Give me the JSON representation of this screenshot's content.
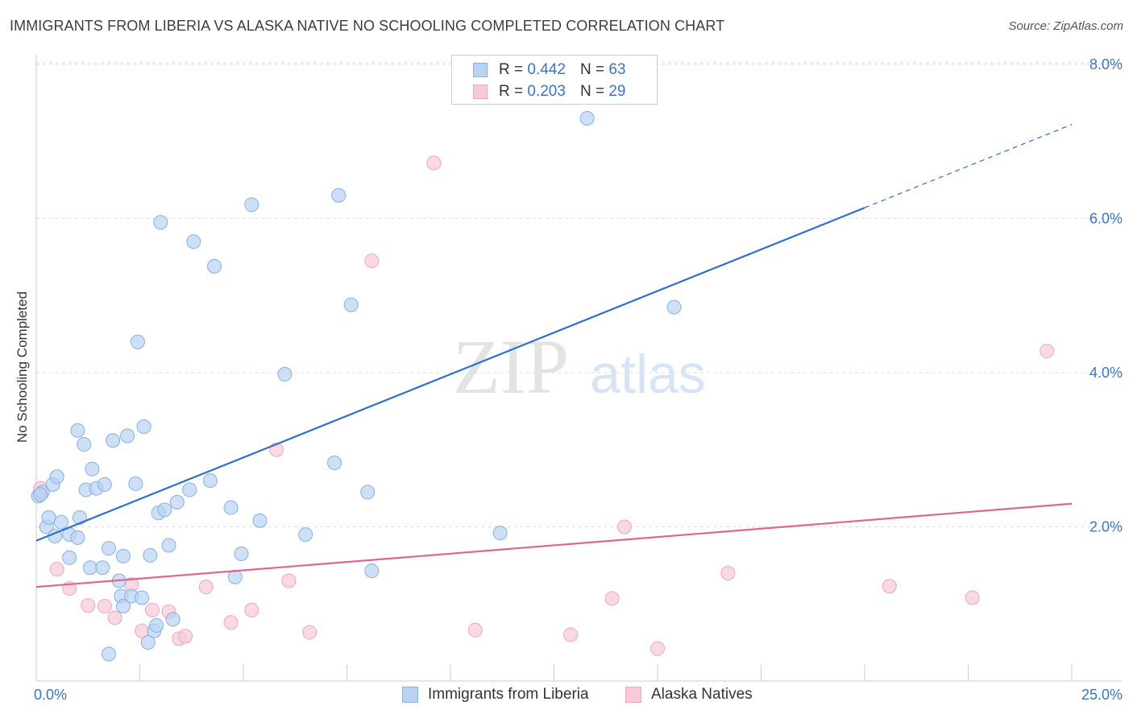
{
  "header": {
    "title": "IMMIGRANTS FROM LIBERIA VS ALASKA NATIVE NO SCHOOLING COMPLETED CORRELATION CHART",
    "source": "Source: ZipAtlas.com"
  },
  "watermark": {
    "zip": "ZIP",
    "atlas": "atlas"
  },
  "legend_top": [
    {
      "r_label": "R =",
      "r_value": "0.442",
      "n_label": "N =",
      "n_value": "63"
    },
    {
      "r_label": "R =",
      "r_value": "0.203",
      "n_label": "N =",
      "n_value": "29"
    }
  ],
  "legend_bottom": [
    {
      "label": "Immigrants from Liberia"
    },
    {
      "label": "Alaska Natives"
    }
  ],
  "colors": {
    "blue_fill": "#b9d3f2",
    "blue_stroke": "#86b0e3",
    "blue_line": "#2f6fcf",
    "pink_fill": "#f9c9d7",
    "pink_stroke": "#eea6bc",
    "pink_line": "#e0668e",
    "tick_text": "#3a74c9",
    "grid": "#dddddd"
  },
  "chart_data": {
    "type": "scatter",
    "title": "IMMIGRANTS FROM LIBERIA VS ALASKA NATIVE NO SCHOOLING COMPLETED CORRELATION CHART",
    "xlabel": "",
    "ylabel": "No Schooling Completed",
    "xlim": [
      0,
      25
    ],
    "ylim": [
      0,
      8.2
    ],
    "x_tick_labels": [
      "0.0%",
      "25.0%"
    ],
    "x_tick_label_values": [
      0,
      25
    ],
    "x_minor_ticks": [
      0,
      2.5,
      5,
      7.5,
      10,
      12.5,
      15,
      17.5,
      20,
      22.5,
      25
    ],
    "y_ticks": [
      2,
      4,
      6,
      8
    ],
    "y_tick_labels": [
      "2.0%",
      "4.0%",
      "6.0%",
      "8.0%"
    ],
    "grid": true,
    "legend_placement": "top-center and bottom",
    "series": [
      {
        "name": "Immigrants from Liberia",
        "color": "#b9d3f2",
        "r": 0.442,
        "n": 63,
        "trend": {
          "x": [
            0,
            20
          ],
          "y": [
            1.82,
            6.14
          ],
          "dashed_to": [
            25,
            7.22
          ]
        },
        "points": [
          [
            0.05,
            2.4
          ],
          [
            0.15,
            2.45
          ],
          [
            0.25,
            2.0
          ],
          [
            0.3,
            2.12
          ],
          [
            0.4,
            2.55
          ],
          [
            0.45,
            1.88
          ],
          [
            0.5,
            2.65
          ],
          [
            0.6,
            2.06
          ],
          [
            0.8,
            1.9
          ],
          [
            0.8,
            1.6
          ],
          [
            1.0,
            3.25
          ],
          [
            1.0,
            1.86
          ],
          [
            1.05,
            2.12
          ],
          [
            1.15,
            3.07
          ],
          [
            1.2,
            2.48
          ],
          [
            1.3,
            1.47
          ],
          [
            1.35,
            2.75
          ],
          [
            1.45,
            2.5
          ],
          [
            1.6,
            1.47
          ],
          [
            1.65,
            2.55
          ],
          [
            1.75,
            0.35
          ],
          [
            1.75,
            1.72
          ],
          [
            1.85,
            3.12
          ],
          [
            2.0,
            1.3
          ],
          [
            2.05,
            1.1
          ],
          [
            2.1,
            0.97
          ],
          [
            2.1,
            1.62
          ],
          [
            2.2,
            3.18
          ],
          [
            2.3,
            1.1
          ],
          [
            2.4,
            2.56
          ],
          [
            2.45,
            4.4
          ],
          [
            2.55,
            1.08
          ],
          [
            2.6,
            3.3
          ],
          [
            2.7,
            0.5
          ],
          [
            2.75,
            1.63
          ],
          [
            2.85,
            0.65
          ],
          [
            2.9,
            0.72
          ],
          [
            2.95,
            2.18
          ],
          [
            3.0,
            5.95
          ],
          [
            3.1,
            2.22
          ],
          [
            3.2,
            1.76
          ],
          [
            3.3,
            0.8
          ],
          [
            3.4,
            2.32
          ],
          [
            3.7,
            2.48
          ],
          [
            3.8,
            5.7
          ],
          [
            4.2,
            2.6
          ],
          [
            4.3,
            5.38
          ],
          [
            4.7,
            2.25
          ],
          [
            4.8,
            1.35
          ],
          [
            4.95,
            1.65
          ],
          [
            5.2,
            6.18
          ],
          [
            5.4,
            2.08
          ],
          [
            6.0,
            3.98
          ],
          [
            6.5,
            1.9
          ],
          [
            7.2,
            2.83
          ],
          [
            7.3,
            6.3
          ],
          [
            7.6,
            4.88
          ],
          [
            8.0,
            2.45
          ],
          [
            8.1,
            1.43
          ],
          [
            11.2,
            1.92
          ],
          [
            13.3,
            7.3
          ],
          [
            15.4,
            4.85
          ],
          [
            0.1,
            2.42
          ]
        ]
      },
      {
        "name": "Alaska Natives",
        "color": "#f9c9d7",
        "r": 0.203,
        "n": 29,
        "trend": {
          "x": [
            0,
            25
          ],
          "y": [
            1.22,
            2.3
          ]
        },
        "points": [
          [
            0.1,
            2.5
          ],
          [
            0.5,
            1.45
          ],
          [
            0.8,
            1.2
          ],
          [
            1.25,
            0.98
          ],
          [
            1.65,
            0.97
          ],
          [
            1.9,
            0.82
          ],
          [
            2.3,
            1.25
          ],
          [
            2.55,
            0.65
          ],
          [
            2.8,
            0.92
          ],
          [
            3.2,
            0.9
          ],
          [
            3.45,
            0.55
          ],
          [
            3.6,
            0.58
          ],
          [
            4.1,
            1.22
          ],
          [
            4.7,
            0.76
          ],
          [
            5.2,
            0.92
          ],
          [
            5.8,
            3.0
          ],
          [
            6.1,
            1.3
          ],
          [
            6.6,
            0.63
          ],
          [
            8.1,
            5.45
          ],
          [
            9.6,
            6.72
          ],
          [
            10.6,
            0.66
          ],
          [
            12.9,
            0.6
          ],
          [
            13.9,
            1.07
          ],
          [
            14.2,
            2.0
          ],
          [
            15.0,
            0.42
          ],
          [
            16.7,
            1.4
          ],
          [
            20.6,
            1.23
          ],
          [
            22.6,
            1.08
          ],
          [
            24.4,
            4.28
          ]
        ]
      }
    ]
  }
}
